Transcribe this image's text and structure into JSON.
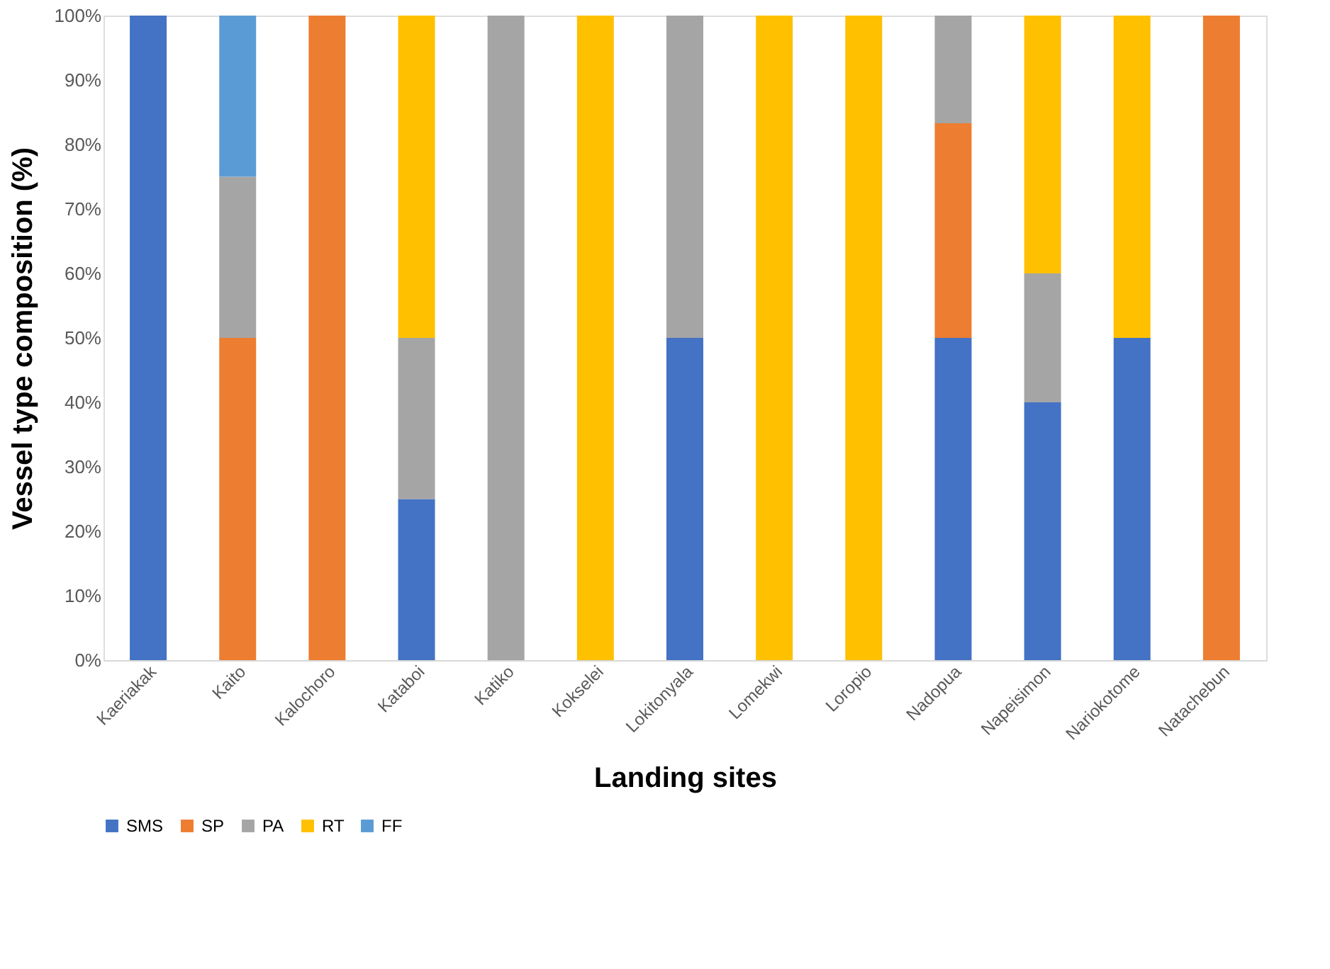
{
  "chart_data": {
    "type": "bar",
    "stacked": true,
    "xlabel": "Landing sites",
    "ylabel": "Vessel type composition (%)",
    "categories": [
      "Kaeriakak",
      "Kaito",
      "Kalochoro",
      "Kataboi",
      "Katiko",
      "Kokselei",
      "Lokitonyala",
      "Lomekwi",
      "Loropio",
      "Nadopua",
      "Napeisimon",
      "Nariokotome",
      "Natachebun"
    ],
    "series": [
      {
        "name": "SMS",
        "color": "#4472c4",
        "values": [
          100,
          0,
          0,
          25,
          0,
          0,
          50,
          0,
          0,
          50,
          40,
          50,
          0
        ]
      },
      {
        "name": "SP",
        "color": "#ed7d31",
        "values": [
          0,
          50,
          100,
          0,
          0,
          0,
          0,
          0,
          0,
          33.3,
          0,
          0,
          100
        ]
      },
      {
        "name": "PA",
        "color": "#a5a5a5",
        "values": [
          0,
          25,
          0,
          25,
          100,
          0,
          50,
          0,
          0,
          16.7,
          20,
          0,
          0
        ]
      },
      {
        "name": "RT",
        "color": "#ffc000",
        "values": [
          0,
          0,
          0,
          50,
          0,
          100,
          0,
          100,
          100,
          0,
          40,
          50,
          0
        ]
      },
      {
        "name": "FF",
        "color": "#5b9bd5",
        "values": [
          0,
          25,
          0,
          0,
          0,
          0,
          0,
          0,
          0,
          0,
          0,
          0,
          0
        ]
      }
    ],
    "ylim": [
      0,
      100
    ],
    "yticks": [
      {
        "value": 0,
        "label": "0%"
      },
      {
        "value": 10,
        "label": "10%"
      },
      {
        "value": 20,
        "label": "20%"
      },
      {
        "value": 30,
        "label": "30%"
      },
      {
        "value": 40,
        "label": "40%"
      },
      {
        "value": 50,
        "label": "50%"
      },
      {
        "value": 60,
        "label": "60%"
      },
      {
        "value": 70,
        "label": "70%"
      },
      {
        "value": 80,
        "label": "80%"
      },
      {
        "value": 90,
        "label": "90%"
      },
      {
        "value": 100,
        "label": "100%"
      }
    ],
    "grid": false,
    "legend": "bottom"
  }
}
